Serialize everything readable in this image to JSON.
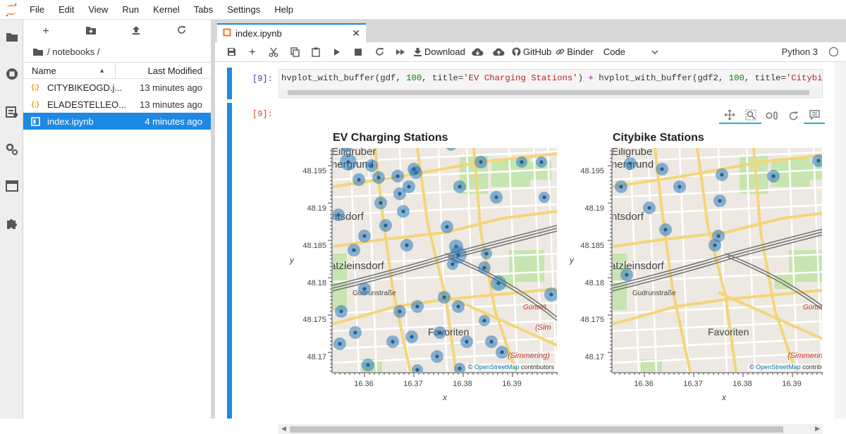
{
  "menubar": {
    "items": [
      "File",
      "Edit",
      "View",
      "Run",
      "Kernel",
      "Tabs",
      "Settings",
      "Help"
    ]
  },
  "activitybar": {
    "icons": [
      "folder-icon",
      "running-icon",
      "commands-icon",
      "property-inspector-icon",
      "tabs-icon",
      "extension-icon"
    ]
  },
  "filebrowser": {
    "toolbar": [
      "new-launcher",
      "new-folder",
      "upload",
      "refresh"
    ],
    "breadcrumb": "/ notebooks /",
    "col_name": "Name",
    "col_modified": "Last Modified",
    "files": [
      {
        "name": "CITYBIKEOGD.j...",
        "modified": "13 minutes ago",
        "icon": "json-icon",
        "icon_text": "{;}"
      },
      {
        "name": "ELADESTELLEO...",
        "modified": "13 minutes ago",
        "icon": "json-icon",
        "icon_text": "{;}"
      },
      {
        "name": "index.ipynb",
        "modified": "4 minutes ago",
        "icon": "notebook-icon",
        "icon_text": ""
      }
    ]
  },
  "tab": {
    "label": "index.ipynb",
    "close": "✕"
  },
  "toolbar": {
    "download": "Download",
    "github": "GitHub",
    "binder": "Binder",
    "cell_type": "Code",
    "kernel": "Python 3"
  },
  "cells": {
    "input_prompt": "[9]:",
    "output_prompt": "[9]:",
    "code": {
      "p1": "hvplot_with_buffer(gdf, ",
      "n1": "100",
      "p2": ", title=",
      "s1": "'EV Charging Stations'",
      "p3": ") ",
      "op": "+",
      "p4": " hvplot_with_buffer(gdf2, ",
      "n2": "100",
      "p5": ", title=",
      "s2": "'Citybike St"
    }
  },
  "plots": [
    {
      "title": "EV Charging Stations",
      "ylabel": "y",
      "xlabel": "x",
      "yticks": [
        "48.195",
        "48.19",
        "48.185",
        "48.18",
        "48.175",
        "48.17"
      ],
      "xticks": [
        "16.36",
        "16.37",
        "16.38",
        "16.39"
      ],
      "map_labels": [
        "Eiligruber",
        "nergrund",
        "ntsdorf",
        "atzleinsdorf",
        "Gudrunstraße",
        "Favoriten",
        "Gürtel/L",
        "(Sim",
        "(Simmering)"
      ],
      "attribution_prefix": "© ",
      "attribution_link": "OpenStreetMap",
      "attribution_suffix": " contributors"
    },
    {
      "title": "Citybike Stations",
      "ylabel": "y",
      "xlabel": "x",
      "yticks": [
        "48.195",
        "48.19",
        "48.185",
        "48.18",
        "48.175",
        "48.17"
      ],
      "xticks": [
        "16.36",
        "16.37",
        "16.38",
        "16.39"
      ],
      "map_labels": [
        "Eiligrube",
        "nergrund",
        "ntsdorf",
        "atzleinsdorf",
        "Gudrunstraße",
        "Favoriten",
        "Gürtel",
        "(Simmering)"
      ],
      "attribution_prefix": "© ",
      "attribution_link": "OpenStreetMap",
      "attribution_suffix": " contributi"
    }
  ],
  "colors": {
    "accent": "#1e88e5",
    "marker": "#2e7ab8",
    "map_bg": "#ede9e2",
    "park": "#c7e5b0",
    "road_major": "#f4d57a",
    "rail": "#777777"
  }
}
